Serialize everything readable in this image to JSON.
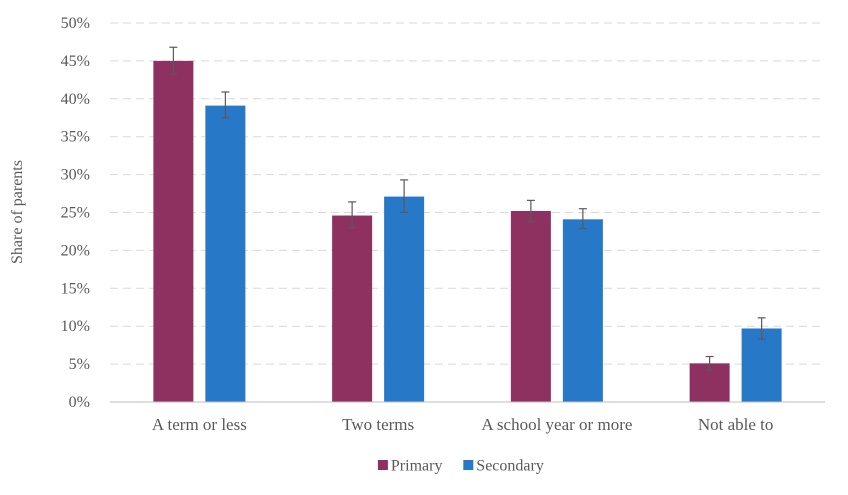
{
  "chart_data": {
    "type": "bar",
    "title": "",
    "xlabel": "",
    "ylabel": "Share of parents",
    "ylim": [
      0,
      50
    ],
    "y_ticks": [
      "0%",
      "5%",
      "10%",
      "15%",
      "20%",
      "25%",
      "30%",
      "35%",
      "40%",
      "45%",
      "50%"
    ],
    "grid": true,
    "legend_position": "bottom",
    "categories": [
      "A term or less",
      "Two terms",
      "A school year or more",
      "Not able to"
    ],
    "series": [
      {
        "name": "Primary",
        "color": "#8e3060",
        "values": [
          45.0,
          24.6,
          25.2,
          5.1
        ],
        "error_low": [
          43.3,
          23.0,
          23.8,
          4.2
        ],
        "error_high": [
          46.8,
          26.4,
          26.6,
          6.0
        ]
      },
      {
        "name": "Secondary",
        "color": "#2878c8",
        "values": [
          39.1,
          27.1,
          24.1,
          9.7
        ],
        "error_low": [
          37.5,
          25.0,
          22.9,
          8.3
        ],
        "error_high": [
          40.9,
          29.3,
          25.5,
          11.1
        ]
      }
    ]
  }
}
